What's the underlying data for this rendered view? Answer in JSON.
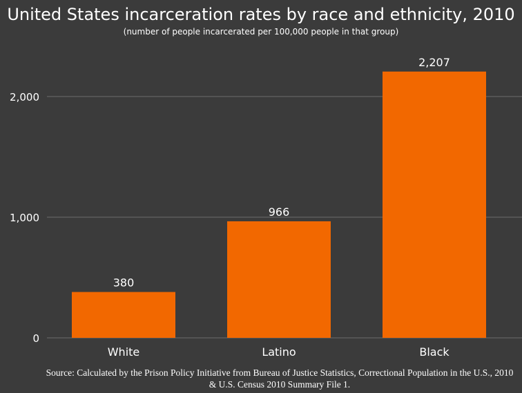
{
  "chart_data": {
    "type": "bar",
    "title": "United States incarceration rates by race and ethnicity, 2010",
    "subtitle": "(number of people incarcerated per 100,000 people in that group)",
    "categories": [
      "White",
      "Latino",
      "Black"
    ],
    "values": [
      380,
      966,
      2207
    ],
    "value_labels": [
      "380",
      "966",
      "2,207"
    ],
    "ylim": [
      0,
      2300
    ],
    "yticks": [
      0,
      1000,
      2000
    ],
    "ytick_labels": [
      "0",
      "1,000",
      "2,000"
    ],
    "grid": true,
    "xlabel": "",
    "ylabel": "",
    "bar_color": "#f26800",
    "background_color": "#3b3b3b",
    "grid_color": "#6e6e6e",
    "source": "Source: Calculated by the Prison Policy Initiative from Bureau of Justice Statistics, Correctional Population in the U.S., 2010 & U.S. Census 2010 Summary File 1."
  }
}
